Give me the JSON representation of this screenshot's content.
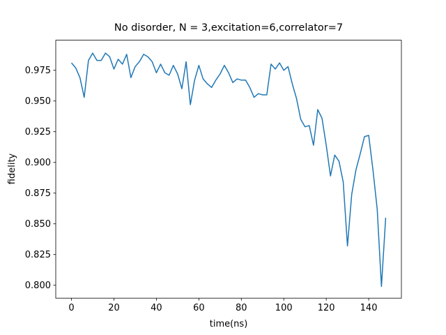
{
  "chart_data": {
    "type": "line",
    "title": "No disorder, N =  3,excitation=6,correlator=7",
    "xlabel": "time(ns)",
    "ylabel": "fidelity",
    "color": "#1f77b4",
    "x": [
      0,
      2,
      4,
      6,
      8,
      10,
      12,
      14,
      16,
      18,
      20,
      22,
      24,
      26,
      28,
      30,
      32,
      34,
      36,
      38,
      40,
      42,
      44,
      46,
      48,
      50,
      52,
      54,
      56,
      58,
      60,
      62,
      64,
      66,
      68,
      70,
      72,
      74,
      76,
      78,
      80,
      82,
      84,
      86,
      88,
      90,
      92,
      94,
      96,
      98,
      100,
      102,
      104,
      106,
      108,
      110,
      112,
      114,
      116,
      118,
      120,
      122,
      124,
      126,
      128,
      130,
      132,
      134,
      136,
      138,
      140,
      142,
      144,
      146,
      148
    ],
    "values": [
      0.981,
      0.977,
      0.969,
      0.953,
      0.983,
      0.989,
      0.983,
      0.983,
      0.989,
      0.986,
      0.976,
      0.984,
      0.98,
      0.988,
      0.969,
      0.978,
      0.982,
      0.988,
      0.986,
      0.982,
      0.973,
      0.98,
      0.973,
      0.971,
      0.979,
      0.972,
      0.96,
      0.982,
      0.947,
      0.967,
      0.979,
      0.968,
      0.964,
      0.961,
      0.967,
      0.972,
      0.979,
      0.973,
      0.965,
      0.968,
      0.967,
      0.967,
      0.961,
      0.953,
      0.956,
      0.955,
      0.955,
      0.98,
      0.976,
      0.981,
      0.975,
      0.978,
      0.964,
      0.952,
      0.935,
      0.929,
      0.93,
      0.914,
      0.943,
      0.936,
      0.914,
      0.889,
      0.906,
      0.901,
      0.884,
      0.832,
      0.874,
      0.894,
      0.907,
      0.921,
      0.922,
      0.894,
      0.862,
      0.799,
      0.855
    ],
    "xlim": [
      -7.4,
      155.4
    ],
    "ylim": [
      0.7895,
      0.9995
    ],
    "xticks": [
      0,
      20,
      40,
      60,
      80,
      100,
      120,
      140
    ],
    "yticks": [
      {
        "value": 0.8,
        "label": "0.800"
      },
      {
        "value": 0.825,
        "label": "0.825"
      },
      {
        "value": 0.85,
        "label": "0.850"
      },
      {
        "value": 0.875,
        "label": "0.875"
      },
      {
        "value": 0.9,
        "label": "0.900"
      },
      {
        "value": 0.925,
        "label": "0.925"
      },
      {
        "value": 0.95,
        "label": "0.950"
      },
      {
        "value": 0.975,
        "label": "0.975"
      }
    ]
  }
}
